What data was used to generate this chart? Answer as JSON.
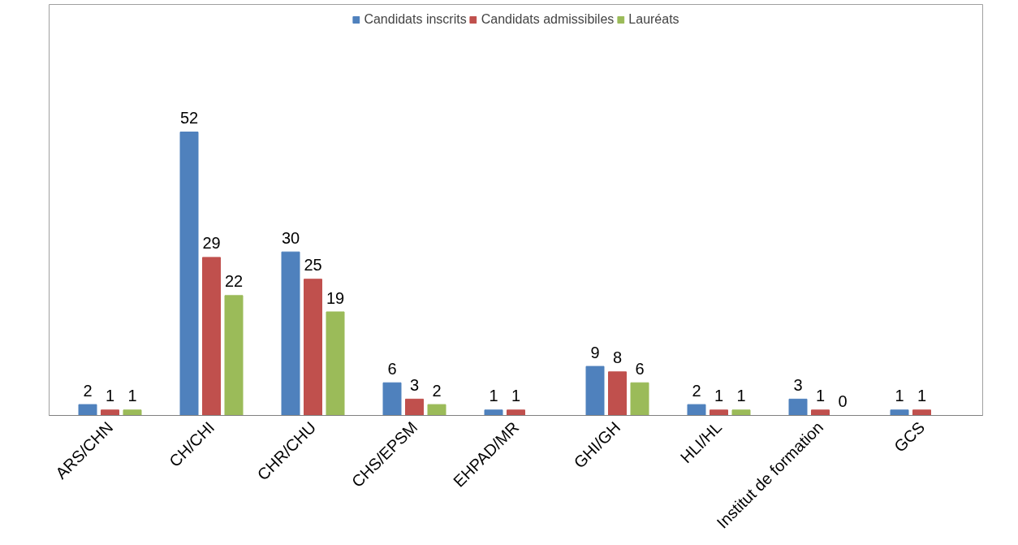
{
  "chart_data": {
    "type": "bar",
    "categories": [
      "ARS/CHN",
      "CH/CHI",
      "CHR/CHU",
      "CHS/EPSM",
      "EHPAD/MR",
      "GHI/GH",
      "HLI/HL",
      "Institut de formation",
      "GCS"
    ],
    "series": [
      {
        "name": "Candidats inscrits",
        "color": "#4f81bd",
        "values": [
          2,
          52,
          30,
          6,
          1,
          9,
          2,
          3,
          1
        ]
      },
      {
        "name": "Candidats admissibiles",
        "color": "#c0504d",
        "values": [
          1,
          29,
          25,
          3,
          1,
          8,
          1,
          1,
          1
        ]
      },
      {
        "name": "Lauréats",
        "color": "#9bbb59",
        "values": [
          1,
          22,
          19,
          2,
          null,
          6,
          1,
          0,
          null
        ]
      }
    ],
    "data_labels": true,
    "legend": "top"
  }
}
